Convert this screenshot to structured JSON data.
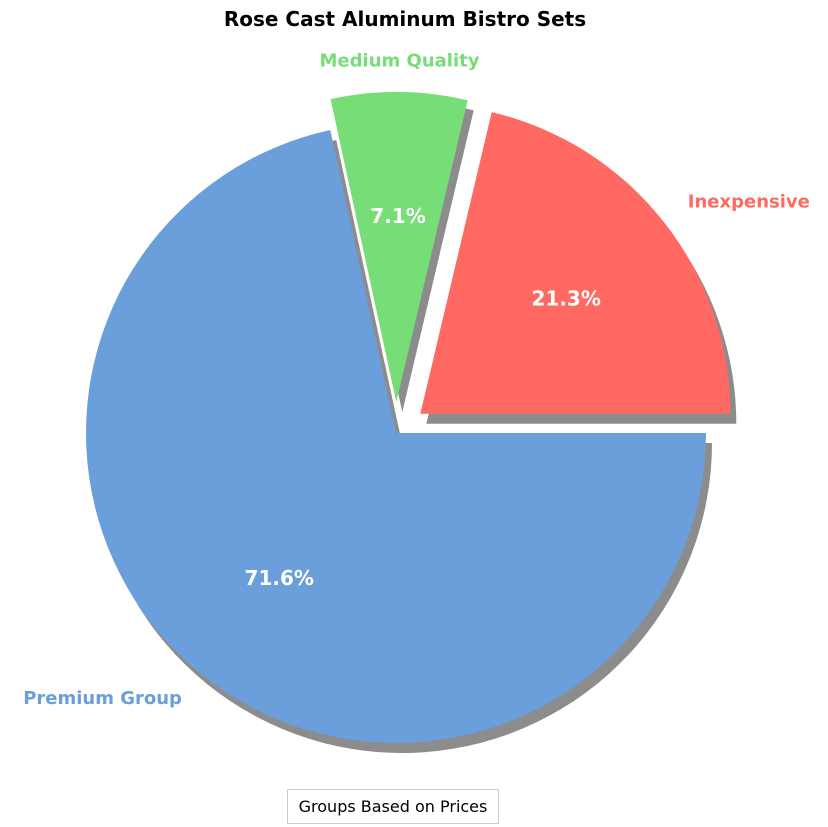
{
  "chart_data": {
    "type": "pie",
    "title": "Rose Cast Aluminum Bistro Sets",
    "legend_title": "Groups Based on Prices",
    "legend_placement": "bottom-center",
    "start_angle_deg": 0,
    "direction": "counterclockwise",
    "shadow": true,
    "slices": [
      {
        "label": "Inexpensive",
        "value": 21.3,
        "pct_label": "21.3%",
        "color": "#ff6961",
        "explode": 0.1
      },
      {
        "label": "Medium Quality",
        "value": 7.1,
        "pct_label": "7.1%",
        "color": "#77dd77",
        "explode": 0.1
      },
      {
        "label": "Premium Group",
        "value": 71.6,
        "pct_label": "71.6%",
        "color": "#6a9fdb",
        "explode": 0.0
      }
    ]
  }
}
